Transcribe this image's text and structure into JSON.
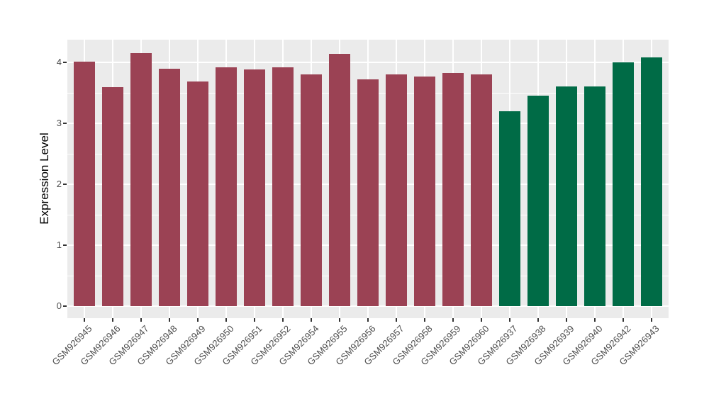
{
  "chart_data": {
    "type": "bar",
    "title": "",
    "xlabel": "",
    "ylabel": "Expression Level",
    "ylim": [
      0,
      4.37
    ],
    "yticks": [
      0,
      1,
      2,
      3,
      4
    ],
    "grid": "white horizontal major (1.0) and minor (0.5) lines; white vertical lines at each category center",
    "legend": "none",
    "panel_bg": "#EBEBEB",
    "grid_color": "#FFFFFF",
    "axis_text_color": "#4D4D4D",
    "categories": [
      "GSM926945",
      "GSM926946",
      "GSM926947",
      "GSM926948",
      "GSM926949",
      "GSM926950",
      "GSM926951",
      "GSM926952",
      "GSM926954",
      "GSM926955",
      "GSM926956",
      "GSM926957",
      "GSM926958",
      "GSM926959",
      "GSM926960",
      "GSM926937",
      "GSM926938",
      "GSM926939",
      "GSM926940",
      "GSM926942",
      "GSM926943"
    ],
    "values": [
      4.01,
      3.59,
      4.15,
      3.9,
      3.69,
      3.92,
      3.88,
      3.92,
      3.8,
      4.14,
      3.72,
      3.8,
      3.77,
      3.83,
      3.8,
      3.2,
      3.45,
      3.61,
      3.6,
      4.0,
      4.08
    ],
    "groups": [
      "maroon",
      "maroon",
      "maroon",
      "maroon",
      "maroon",
      "maroon",
      "maroon",
      "maroon",
      "maroon",
      "maroon",
      "maroon",
      "maroon",
      "maroon",
      "maroon",
      "maroon",
      "green",
      "green",
      "green",
      "green",
      "green",
      "green"
    ],
    "palette": {
      "maroon": "#9B4254",
      "green": "#006B46"
    }
  }
}
